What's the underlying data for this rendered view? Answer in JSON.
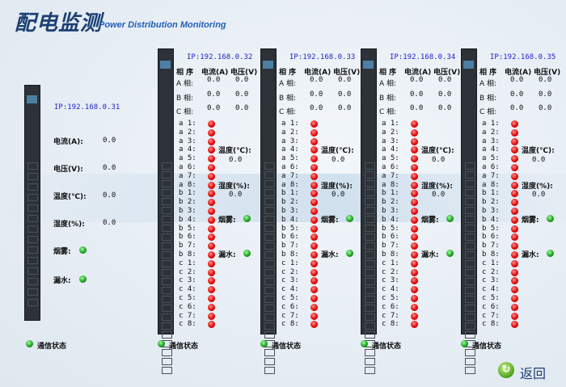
{
  "header": {
    "title_cn": "配电监测",
    "title_en": "Power Distribution Monitoring"
  },
  "main_pdu": {
    "ip": "IP:192.168.0.31",
    "current_label": "电流(A):",
    "current": "0.0",
    "voltage_label": "电压(V):",
    "voltage": "0.0",
    "temp_label": "温度(℃):",
    "temp": "0.0",
    "humidity_label": "湿度(%):",
    "humidity": "0.0",
    "smoke_label": "烟雾:",
    "smoke_status": "ok",
    "leak_label": "漏水:",
    "leak_status": "ok",
    "comm_label": "通信状态",
    "comm_status": "ok"
  },
  "labels": {
    "phase": "相 序",
    "current": "电流(A)",
    "voltage": "电压(V)",
    "phases": [
      "A 相:",
      "B 相:",
      "C 相:"
    ],
    "temp": "温度(℃):",
    "humidity": "湿度(%):",
    "smoke": "烟雾:",
    "leak": "漏水:",
    "comm": "通信状态"
  },
  "outlet_labels": [
    "a 1:",
    "a 2:",
    "a 3:",
    "a 4:",
    "a 5:",
    "a 6:",
    "a 7:",
    "a 8:",
    "b 1:",
    "b 2:",
    "b 3:",
    "b 4:",
    "b 5:",
    "b 6:",
    "b 7:",
    "b 8:",
    "c 1:",
    "c 2:",
    "c 3:",
    "c 4:",
    "c 5:",
    "c 6:",
    "c 7:",
    "c 8:"
  ],
  "pdus": [
    {
      "ip": "IP:192.168.0.32",
      "phases": [
        [
          "0.0",
          "0.0"
        ],
        [
          "0.0",
          "0.0"
        ],
        [
          "0.0",
          "0.0"
        ]
      ],
      "temp": "0.0",
      "humidity": "0.0",
      "outlets_status": "off",
      "smoke_status": "ok",
      "leak_status": "ok",
      "comm_status": "ok"
    },
    {
      "ip": "IP:192.168.0.33",
      "phases": [
        [
          "0.0",
          "0.0"
        ],
        [
          "0.0",
          "0.0"
        ],
        [
          "0.0",
          "0.0"
        ]
      ],
      "temp": "0.0",
      "humidity": "0.0",
      "outlets_status": "off",
      "smoke_status": "ok",
      "leak_status": "ok",
      "comm_status": "ok"
    },
    {
      "ip": "IP:192.168.0.34",
      "phases": [
        [
          "0.0",
          "0.0"
        ],
        [
          "0.0",
          "0.0"
        ],
        [
          "0.0",
          "0.0"
        ]
      ],
      "temp": "0.0",
      "humidity": "0.0",
      "outlets_status": "off",
      "smoke_status": "ok",
      "leak_status": "ok",
      "comm_status": "ok"
    },
    {
      "ip": "IP:192.168.0.35",
      "phases": [
        [
          "0.0",
          "0.0"
        ],
        [
          "0.0",
          "0.0"
        ],
        [
          "0.0",
          "0.0"
        ]
      ],
      "temp": "0.0",
      "humidity": "0.0",
      "outlets_status": "off",
      "smoke_status": "ok",
      "leak_status": "ok",
      "comm_status": "ok"
    }
  ],
  "colors": {
    "ok": "#1a9a1a",
    "off": "#e00000",
    "ip": "#2222cc",
    "title": "#1d3f73"
  },
  "footer": {
    "back_label": "返回",
    "back_icon": "refresh-arrow-icon"
  }
}
